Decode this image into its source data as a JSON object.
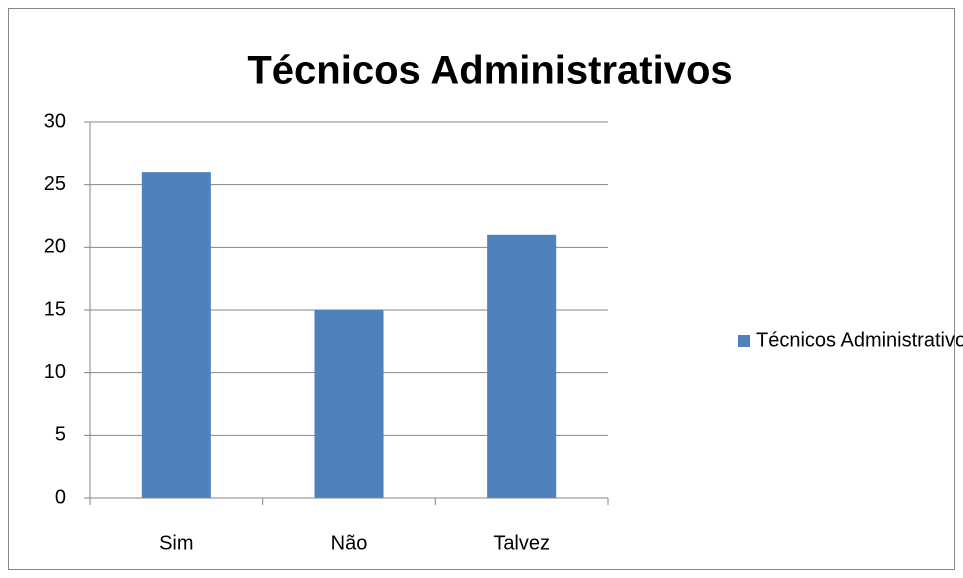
{
  "chart_data": {
    "type": "bar",
    "title": "Técnicos Administrativos",
    "categories": [
      "Sim",
      "Não",
      "Talvez"
    ],
    "series": [
      {
        "name": "Técnicos Administrativos",
        "color": "#4f81bd",
        "values": [
          26,
          15,
          21
        ]
      }
    ],
    "ylim": [
      0,
      30
    ],
    "yticks": [
      0,
      5,
      10,
      15,
      20,
      25,
      30
    ],
    "grid": true,
    "legend": "right"
  }
}
